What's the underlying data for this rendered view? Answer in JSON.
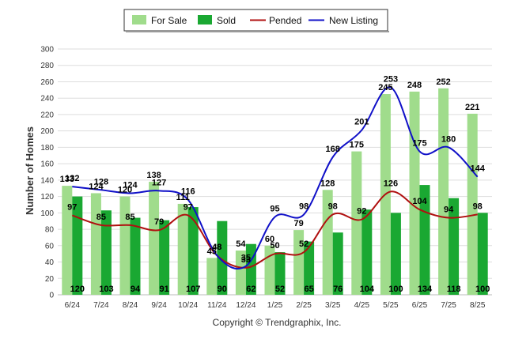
{
  "chart_data": {
    "type": "bar",
    "categories": [
      "6/24",
      "7/24",
      "8/24",
      "9/24",
      "10/24",
      "11/24",
      "12/24",
      "1/25",
      "2/25",
      "3/25",
      "4/25",
      "5/25",
      "6/25",
      "7/25",
      "8/25"
    ],
    "series": [
      {
        "name": "For Sale",
        "type": "bar",
        "color": "#a0dc8c",
        "values": [
          133,
          124,
          120,
          138,
          111,
          45,
          54,
          60,
          79,
          128,
          175,
          245,
          248,
          252,
          221
        ]
      },
      {
        "name": "Sold",
        "type": "bar",
        "color": "#1aa832",
        "values": [
          120,
          103,
          94,
          91,
          107,
          90,
          62,
          52,
          65,
          76,
          104,
          100,
          134,
          118,
          100
        ]
      },
      {
        "name": "Pended",
        "type": "line",
        "color": "#b01010",
        "values": [
          97,
          85,
          85,
          79,
          97,
          48,
          33,
          50,
          52,
          98,
          92,
          126,
          104,
          94,
          98
        ]
      },
      {
        "name": "New Listing",
        "type": "line",
        "color": "#1010c8",
        "values": [
          132,
          128,
          124,
          127,
          116,
          48,
          35,
          95,
          98,
          168,
          201,
          253,
          175,
          180,
          144
        ]
      }
    ],
    "ylabel": "Number of Homes",
    "xlabel": "",
    "ylim": [
      0,
      300
    ],
    "yticks": [
      0,
      20,
      40,
      60,
      80,
      100,
      120,
      140,
      160,
      180,
      200,
      220,
      240,
      260,
      280,
      300
    ],
    "grid": true,
    "legend": "top-center",
    "footer": "Copyright © Trendgraphix, Inc."
  }
}
